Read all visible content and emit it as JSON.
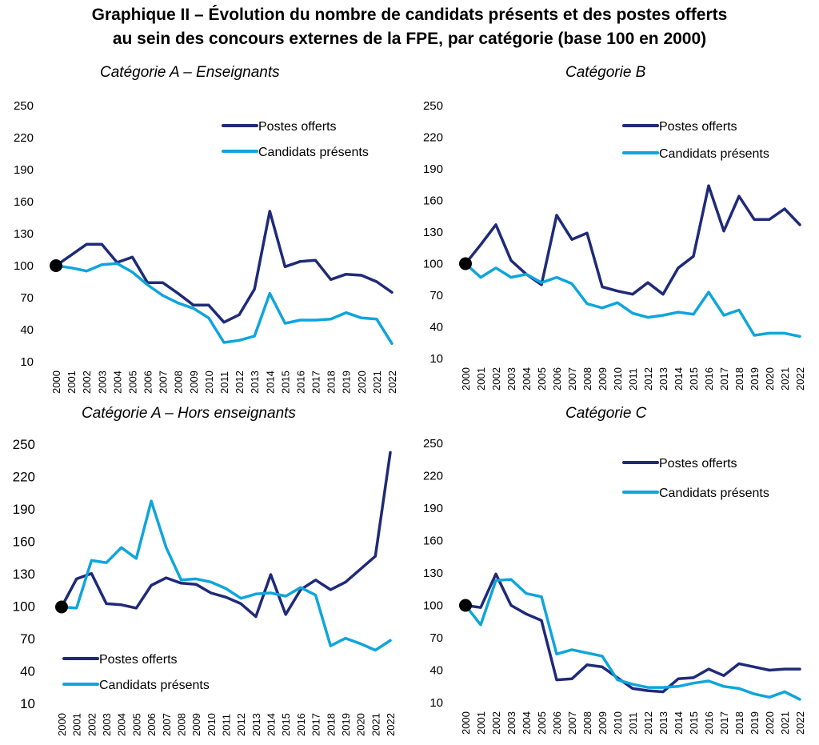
{
  "figure": {
    "title_line1": "Graphique II – Évolution du nombre de candidats présents et des postes offerts",
    "title_line2": "au sein des concours externes de la FPE, par catégorie (base 100 en 2000)"
  },
  "colors": {
    "postes": "#1f2a78",
    "candidats": "#0ea5dc",
    "marker": "#000000"
  },
  "chart_data": [
    {
      "type": "line",
      "title": "Catégorie A – Enseignants",
      "categories": [
        "2000",
        "2001",
        "2002",
        "2003",
        "2004",
        "2005",
        "2006",
        "2007",
        "2008",
        "2009",
        "2010",
        "2011",
        "2012",
        "2013",
        "2014",
        "2015",
        "2016",
        "2017",
        "2018",
        "2019",
        "2020",
        "2021",
        "2022"
      ],
      "ylim": [
        10,
        250
      ],
      "yticks": [
        250,
        220,
        190,
        160,
        130,
        100,
        70,
        40,
        10
      ],
      "legend": "top-right",
      "series": [
        {
          "name": "Postes offerts",
          "values": [
            100,
            110,
            120,
            120,
            103,
            108,
            84,
            84,
            74,
            63,
            63,
            47,
            54,
            78,
            151,
            99,
            104,
            105,
            87,
            92,
            91,
            85,
            75
          ]
        },
        {
          "name": "Candidats présents",
          "values": [
            100,
            98,
            95,
            101,
            102,
            94,
            82,
            72,
            65,
            60,
            51,
            28,
            30,
            34,
            74,
            46,
            49,
            49,
            50,
            56,
            51,
            50,
            27
          ]
        }
      ],
      "grid": false
    },
    {
      "type": "line",
      "title": "Catégorie B",
      "categories": [
        "2000",
        "2001",
        "2002",
        "2003",
        "2004",
        "2005",
        "2006",
        "2007",
        "2008",
        "2009",
        "2010",
        "2011",
        "2012",
        "2013",
        "2014",
        "2015",
        "2016",
        "2017",
        "2018",
        "2019",
        "2020",
        "2021",
        "2022"
      ],
      "ylim": [
        10,
        250
      ],
      "yticks": [
        250,
        220,
        190,
        160,
        130,
        100,
        70,
        40,
        10
      ],
      "legend": "top-right",
      "series": [
        {
          "name": "Postes offerts",
          "values": [
            100,
            118,
            137,
            103,
            90,
            80,
            146,
            123,
            129,
            78,
            74,
            71,
            82,
            71,
            96,
            107,
            174,
            131,
            164,
            142,
            142,
            152,
            137
          ]
        },
        {
          "name": "Candidats présents",
          "values": [
            100,
            87,
            96,
            87,
            90,
            82,
            87,
            81,
            62,
            58,
            63,
            53,
            49,
            51,
            54,
            52,
            73,
            51,
            56,
            32,
            34,
            34,
            31
          ]
        }
      ],
      "grid": false
    },
    {
      "type": "line",
      "title": "Catégorie A – Hors enseignants",
      "categories": [
        "2000",
        "2001",
        "2002",
        "2003",
        "2004",
        "2005",
        "2006",
        "2007",
        "2008",
        "2009",
        "2010",
        "2011",
        "2012",
        "2013",
        "2014",
        "2015",
        "2016",
        "2017",
        "2018",
        "2019",
        "2020",
        "2021",
        "2022"
      ],
      "ylim": [
        10,
        250
      ],
      "yticks": [
        250,
        220,
        190,
        160,
        130,
        100,
        70,
        40,
        10
      ],
      "legend": "bottom-left",
      "series": [
        {
          "name": "Postes offerts",
          "values": [
            100,
            126,
            131,
            103,
            102,
            99,
            120,
            127,
            122,
            121,
            113,
            109,
            103,
            91,
            130,
            93,
            116,
            125,
            116,
            123,
            135,
            147,
            243
          ]
        },
        {
          "name": "Candidats présents",
          "values": [
            100,
            99,
            143,
            141,
            155,
            145,
            198,
            155,
            125,
            126,
            123,
            117,
            108,
            112,
            113,
            110,
            118,
            111,
            64,
            71,
            66,
            60,
            69
          ]
        }
      ],
      "grid": false
    },
    {
      "type": "line",
      "title": "Catégorie C",
      "categories": [
        "2000",
        "2001",
        "2002",
        "2003",
        "2004",
        "2005",
        "2006",
        "2007",
        "2008",
        "2009",
        "2010",
        "2011",
        "2012",
        "2013",
        "2014",
        "2015",
        "2016",
        "2017",
        "2018",
        "2019",
        "2020",
        "2021",
        "2022"
      ],
      "ylim": [
        10,
        250
      ],
      "yticks": [
        250,
        220,
        190,
        160,
        130,
        100,
        70,
        40,
        10
      ],
      "legend": "top-right",
      "series": [
        {
          "name": "Postes offerts",
          "values": [
            100,
            98,
            129,
            100,
            92,
            86,
            31,
            32,
            45,
            43,
            33,
            23,
            21,
            20,
            32,
            33,
            41,
            35,
            46,
            43,
            40,
            41,
            41
          ]
        },
        {
          "name": "Candidats présents",
          "values": [
            100,
            82,
            123,
            124,
            111,
            108,
            55,
            59,
            56,
            53,
            31,
            27,
            24,
            24,
            25,
            28,
            30,
            25,
            23,
            18,
            15,
            20,
            13
          ]
        }
      ],
      "grid": false
    }
  ]
}
